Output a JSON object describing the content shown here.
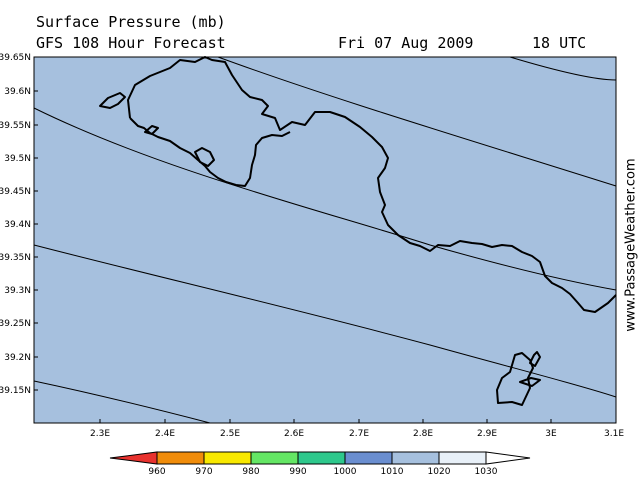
{
  "header": {
    "title": "Surface Pressure (mb)",
    "subtitle": "GFS 108 Hour Forecast",
    "date": "Fri 07 Aug 2009",
    "time": "18 UTC"
  },
  "branding": {
    "site": "www.PassageWeather.com"
  },
  "map": {
    "background_color": "#a6c0de",
    "lat_labels": [
      "39.65N",
      "39.6N",
      "39.55N",
      "39.5N",
      "39.45N",
      "39.4N",
      "39.35N",
      "39.3N",
      "39.25N",
      "39.2N",
      "39.15N"
    ],
    "lon_labels": [
      "2.3E",
      "2.4E",
      "2.5E",
      "2.6E",
      "2.7E",
      "2.8E",
      "2.9E",
      "3E",
      "3.1E"
    ]
  },
  "legend": {
    "labels": [
      "960",
      "970",
      "980",
      "990",
      "1000",
      "1010",
      "1020",
      "1030"
    ],
    "colors": [
      "#e8322e",
      "#f08c0a",
      "#f8e800",
      "#64e664",
      "#2ec88c",
      "#6a8ed0",
      "#a6c0de",
      "#e8f0f8",
      "#ffffff"
    ]
  }
}
